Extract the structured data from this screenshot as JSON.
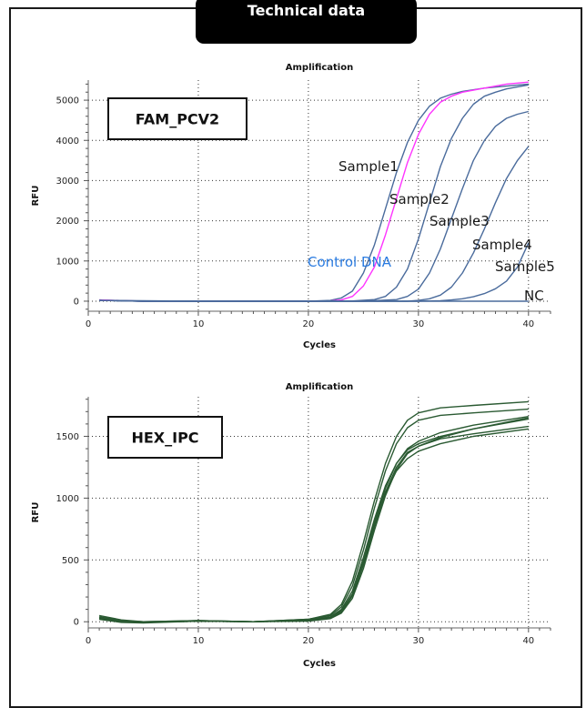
{
  "header": {
    "title": "Technical data"
  },
  "chart_data": [
    {
      "type": "line",
      "title": "Amplification",
      "xlabel": "Cycles",
      "ylabel": "RFU",
      "panel_label": "FAM_PCV2",
      "xlim": [
        0,
        42
      ],
      "ylim": [
        -250,
        5500
      ],
      "xticks": [
        0,
        10,
        20,
        30,
        40
      ],
      "yticks": [
        0,
        1000,
        2000,
        3000,
        4000,
        5000
      ],
      "grid": true,
      "series": [
        {
          "name": "Sample1",
          "color": "#4a6b9c",
          "label_color": "#1a1a1a",
          "x": [
            1,
            5,
            10,
            15,
            20,
            22,
            23,
            24,
            25,
            26,
            27,
            28,
            29,
            30,
            31,
            32,
            33,
            34,
            36,
            38,
            40
          ],
          "y": [
            30,
            0,
            0,
            0,
            0,
            20,
            80,
            250,
            700,
            1400,
            2300,
            3200,
            3950,
            4500,
            4850,
            5050,
            5150,
            5220,
            5300,
            5350,
            5400
          ]
        },
        {
          "name": "Control DNA",
          "color": "#ff33ff",
          "label_color": "#2a7be0",
          "x": [
            1,
            5,
            10,
            15,
            20,
            22,
            23,
            24,
            25,
            26,
            27,
            28,
            29,
            30,
            31,
            32,
            33,
            34,
            36,
            38,
            40
          ],
          "y": [
            30,
            0,
            0,
            0,
            0,
            5,
            30,
            120,
            380,
            850,
            1650,
            2550,
            3450,
            4150,
            4650,
            4950,
            5100,
            5200,
            5300,
            5400,
            5450
          ]
        },
        {
          "name": "Sample2",
          "color": "#4a6b9c",
          "label_color": "#1a1a1a",
          "x": [
            1,
            5,
            10,
            20,
            24,
            26,
            27,
            28,
            29,
            30,
            31,
            32,
            33,
            34,
            35,
            36,
            37,
            38,
            40
          ],
          "y": [
            20,
            0,
            0,
            0,
            5,
            40,
            120,
            350,
            800,
            1550,
            2450,
            3350,
            4050,
            4550,
            4900,
            5100,
            5200,
            5280,
            5380
          ]
        },
        {
          "name": "Sample3",
          "color": "#4a6b9c",
          "label_color": "#1a1a1a",
          "x": [
            1,
            5,
            10,
            20,
            25,
            28,
            29,
            30,
            31,
            32,
            33,
            34,
            35,
            36,
            37,
            38,
            39,
            40
          ],
          "y": [
            20,
            0,
            0,
            0,
            0,
            40,
            120,
            300,
            700,
            1300,
            2050,
            2800,
            3500,
            4000,
            4350,
            4550,
            4650,
            4720
          ]
        },
        {
          "name": "Sample4",
          "color": "#4a6b9c",
          "label_color": "#1a1a1a",
          "x": [
            1,
            5,
            10,
            20,
            25,
            29,
            30,
            31,
            32,
            33,
            34,
            35,
            36,
            37,
            38,
            39,
            40
          ],
          "y": [
            20,
            0,
            0,
            0,
            0,
            0,
            20,
            60,
            150,
            350,
            700,
            1200,
            1800,
            2450,
            3050,
            3500,
            3850
          ]
        },
        {
          "name": "Sample5",
          "color": "#4a6b9c",
          "label_color": "#1a1a1a",
          "x": [
            1,
            5,
            10,
            20,
            25,
            30,
            32,
            33,
            34,
            35,
            36,
            37,
            38,
            39,
            40
          ],
          "y": [
            20,
            0,
            0,
            0,
            0,
            0,
            10,
            30,
            60,
            110,
            190,
            310,
            500,
            850,
            1450
          ]
        },
        {
          "name": "NC",
          "color": "#4a6b9c",
          "label_color": "#1a1a1a",
          "x": [
            1,
            10,
            20,
            30,
            40
          ],
          "y": [
            20,
            0,
            0,
            0,
            0
          ]
        }
      ]
    },
    {
      "type": "line",
      "title": "Amplification",
      "xlabel": "Cycles",
      "ylabel": "RFU",
      "panel_label": "HEX_IPC",
      "xlim": [
        0,
        42
      ],
      "ylim": [
        -50,
        1820
      ],
      "xticks": [
        0,
        10,
        20,
        30,
        40
      ],
      "yticks": [
        0,
        500,
        1000,
        1500
      ],
      "grid": true,
      "series": [
        {
          "color": "#2a5a32",
          "x": [
            1,
            3,
            5,
            10,
            15,
            20,
            22,
            23,
            24,
            25,
            26,
            27,
            28,
            29,
            30,
            32,
            35,
            40
          ],
          "y": [
            40,
            10,
            0,
            10,
            0,
            20,
            60,
            140,
            330,
            640,
            980,
            1280,
            1500,
            1630,
            1690,
            1730,
            1750,
            1780
          ]
        },
        {
          "color": "#2a5a32",
          "x": [
            1,
            3,
            5,
            10,
            15,
            20,
            22,
            23,
            24,
            25,
            26,
            27,
            28,
            29,
            30,
            32,
            35,
            40
          ],
          "y": [
            30,
            5,
            0,
            10,
            0,
            20,
            50,
            120,
            290,
            580,
            920,
            1220,
            1440,
            1570,
            1630,
            1670,
            1690,
            1720
          ]
        },
        {
          "color": "#2a5a32",
          "x": [
            1,
            3,
            5,
            10,
            15,
            20,
            22,
            23,
            24,
            25,
            26,
            27,
            28,
            29,
            30,
            32,
            35,
            40
          ],
          "y": [
            30,
            0,
            -5,
            5,
            0,
            15,
            40,
            100,
            250,
            520,
            830,
            1100,
            1280,
            1390,
            1440,
            1500,
            1560,
            1650
          ]
        },
        {
          "color": "#2a5a32",
          "x": [
            1,
            3,
            5,
            10,
            15,
            20,
            22,
            23,
            24,
            25,
            26,
            27,
            28,
            29,
            30,
            32,
            35,
            40
          ],
          "y": [
            25,
            0,
            -5,
            5,
            0,
            10,
            30,
            90,
            220,
            470,
            780,
            1040,
            1220,
            1320,
            1380,
            1440,
            1500,
            1560
          ]
        },
        {
          "color": "#2a5a32",
          "x": [
            1,
            3,
            5,
            10,
            15,
            20,
            22,
            23,
            24,
            25,
            26,
            27,
            28,
            29,
            30,
            32,
            35,
            40
          ],
          "y": [
            50,
            15,
            0,
            5,
            0,
            10,
            30,
            80,
            210,
            460,
            770,
            1050,
            1250,
            1370,
            1420,
            1480,
            1520,
            1580
          ]
        },
        {
          "color": "#2a5a32",
          "x": [
            1,
            3,
            5,
            10,
            15,
            20,
            22,
            23,
            24,
            25,
            26,
            27,
            28,
            29,
            30,
            32,
            35,
            40
          ],
          "y": [
            20,
            -5,
            -10,
            5,
            0,
            5,
            25,
            70,
            190,
            430,
            740,
            1020,
            1230,
            1360,
            1420,
            1490,
            1560,
            1640
          ]
        },
        {
          "color": "#2a5a32",
          "x": [
            1,
            3,
            5,
            10,
            15,
            20,
            22,
            23,
            24,
            25,
            26,
            27,
            28,
            29,
            30,
            32,
            35,
            40
          ],
          "y": [
            35,
            5,
            -5,
            10,
            0,
            10,
            30,
            85,
            225,
            490,
            800,
            1080,
            1280,
            1400,
            1460,
            1530,
            1590,
            1660
          ]
        }
      ]
    }
  ]
}
